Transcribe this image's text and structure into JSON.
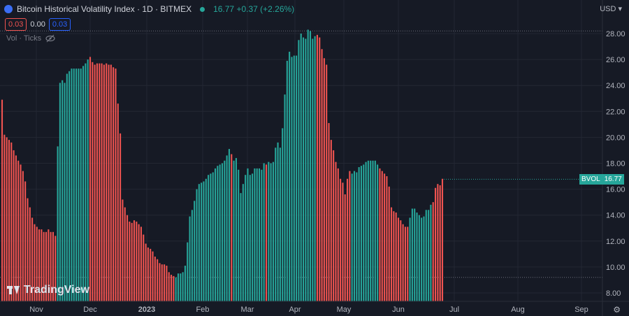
{
  "header": {
    "title": "Bitcoin Historical Volatility Index · 1D · BITMEX",
    "quote": "16.77 +0.37 (+2.26%)",
    "values": [
      "0.03",
      "0.00",
      "0.03"
    ],
    "vol_label": "Vol · Ticks",
    "currency": "USD"
  },
  "branding": {
    "logo": "TradingView"
  },
  "badge": {
    "symbol": "BVOL",
    "price": "16.77"
  },
  "colors": {
    "up": "#26a69a",
    "down": "#ef5350",
    "background": "#161a25",
    "grid": "#232733"
  },
  "chart_data": {
    "type": "bar",
    "y_ticks": [
      "8.00",
      "10.00",
      "12.00",
      "14.00",
      "16.00",
      "18.00",
      "20.00",
      "22.00",
      "24.00",
      "26.00",
      "28.00"
    ],
    "x_ticks": [
      "Nov",
      "Dec",
      "2023",
      "Feb",
      "Mar",
      "Apr",
      "May",
      "Jun",
      "Jul",
      "Aug",
      "Sep"
    ],
    "ylim": [
      7.2,
      29.2
    ],
    "series": [
      {
        "values": [
          22.9,
          20.2,
          20.0,
          19.8,
          19.6,
          19.0,
          18.6,
          18.2,
          17.9,
          17.4,
          16.6,
          15.3,
          14.6,
          13.8,
          13.3,
          13.1,
          12.9,
          12.9,
          12.7,
          12.7,
          12.9,
          12.7,
          12.7,
          12.4,
          19.3,
          24.2,
          24.4,
          24.2,
          24.9,
          25.1,
          25.3,
          25.3,
          25.3,
          25.3,
          25.3,
          25.5,
          25.7,
          26.0,
          26.2,
          25.8,
          25.6,
          25.7,
          25.7,
          25.7,
          25.6,
          25.7,
          25.6,
          25.6,
          25.4,
          25.3,
          22.6,
          20.3,
          15.2,
          14.6,
          14.0,
          13.5,
          13.4,
          13.6,
          13.5,
          13.3,
          13.1,
          12.5,
          11.8,
          11.5,
          11.4,
          11.2,
          10.8,
          10.6,
          10.3,
          10.2,
          10.2,
          10.1,
          9.6,
          9.4,
          9.3,
          9.2,
          9.5,
          9.5,
          9.6,
          10.1,
          11.9,
          13.9,
          14.4,
          15.1,
          16.0,
          16.4,
          16.5,
          16.6,
          16.8,
          17.1,
          17.2,
          17.3,
          17.6,
          17.8,
          17.9,
          18.0,
          18.2,
          18.6,
          19.1,
          18.7,
          18.2,
          18.4,
          17.5,
          15.7,
          16.4,
          17.1,
          17.6,
          17.1,
          17.2,
          17.6,
          17.6,
          17.6,
          17.5,
          18.0,
          17.9,
          18.1,
          18.0,
          18.1,
          19.2,
          19.6,
          19.2,
          20.7,
          23.3,
          25.9,
          26.6,
          26.2,
          26.3,
          26.3,
          27.5,
          28.0,
          27.7,
          27.6,
          28.3,
          28.2,
          27.6,
          27.8,
          27.9,
          27.7,
          26.8,
          26.1,
          25.6,
          21.1,
          19.8,
          19.0,
          18.1,
          17.6,
          16.8,
          16.5,
          15.6,
          16.8,
          17.4,
          17.2,
          17.4,
          17.3,
          17.7,
          17.8,
          17.9,
          18.1,
          18.2,
          18.2,
          18.2,
          18.2,
          17.9,
          17.6,
          17.4,
          17.2,
          17.0,
          16.2,
          14.6,
          14.3,
          14.2,
          13.8,
          13.6,
          13.3,
          13.1,
          13.1,
          13.8,
          14.5,
          14.5,
          14.2,
          14.0,
          13.8,
          13.9,
          14.4,
          14.4,
          14.8,
          15.0,
          16.1,
          16.4,
          16.3,
          16.8
        ],
        "directions": "DDDDDDDDDDDDDDDDDDDDDDDDUUUUUUUUUUUUUUDDDDDDDDDDDDDDDDDDDDDDDDDDDDDDDDDDDDDUUUUUUUUUUUUUUUUUUUUUUUUDUUUUUUUUUUUUUUDUUUUUUUUUUUUUUUUUUUUUDDDDDDDDDDDDDDDUUUUUUUUUUUUDDDDDDDDDDDDDUUUUUUUUUU"
      }
    ],
    "last_value": 16.77,
    "reference_levels": [
      28.2,
      9.2
    ]
  }
}
